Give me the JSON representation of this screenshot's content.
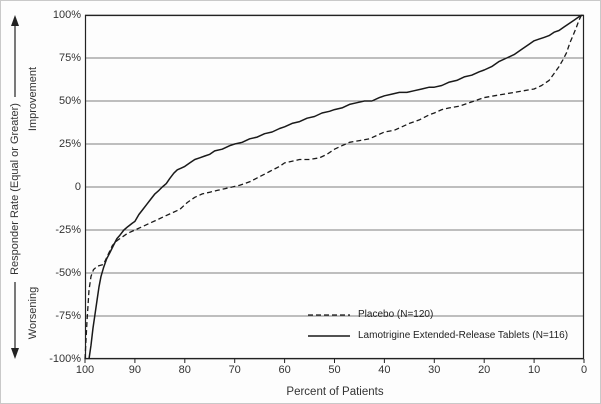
{
  "chart_data": {
    "type": "line",
    "title": "",
    "xlabel": "Percent of Patients",
    "ylabel": "Responder Rate (Equal or Greater)",
    "y_axis_upper_label": "Improvement",
    "y_axis_lower_label": "Worsening",
    "xlim": [
      100,
      0
    ],
    "ylim": [
      -100,
      100
    ],
    "x_axis_reversed": true,
    "x_ticks": [
      100,
      90,
      80,
      70,
      60,
      50,
      40,
      30,
      20,
      10,
      0
    ],
    "y_tick_values": [
      100,
      75,
      50,
      25,
      0,
      -25,
      -50,
      -75,
      -100
    ],
    "y_tick_labels": [
      "100%",
      "75%",
      "50%",
      "25%",
      "0",
      "-25%",
      "-50%",
      "-75%",
      "-100%"
    ],
    "grid": "horizontal",
    "line_color": "#1a1a1a",
    "legend_position": "inside-bottom-right",
    "series": [
      {
        "name": "Placebo (N=120)",
        "style": "dashed",
        "points": [
          [
            100,
            -100
          ],
          [
            99.6,
            -78
          ],
          [
            99.2,
            -60
          ],
          [
            98.8,
            -52
          ],
          [
            98.3,
            -48
          ],
          [
            97.5,
            -46
          ],
          [
            96.3,
            -45
          ],
          [
            95.5,
            -40
          ],
          [
            94.5,
            -34
          ],
          [
            93.5,
            -31
          ],
          [
            92.5,
            -29
          ],
          [
            91.5,
            -27
          ],
          [
            90,
            -25
          ],
          [
            88.5,
            -23
          ],
          [
            87,
            -21
          ],
          [
            85.5,
            -19
          ],
          [
            84,
            -17
          ],
          [
            82.5,
            -15
          ],
          [
            81,
            -13
          ],
          [
            79.5,
            -9
          ],
          [
            78,
            -6
          ],
          [
            76.5,
            -4
          ],
          [
            75,
            -3
          ],
          [
            73.5,
            -2
          ],
          [
            72,
            -1
          ],
          [
            70.5,
            0
          ],
          [
            69,
            1
          ],
          [
            67,
            3
          ],
          [
            65,
            6
          ],
          [
            63,
            9
          ],
          [
            61,
            12
          ],
          [
            60,
            14
          ],
          [
            58.5,
            15
          ],
          [
            57,
            16
          ],
          [
            55,
            16
          ],
          [
            53,
            17
          ],
          [
            51.5,
            19
          ],
          [
            50,
            22
          ],
          [
            48.5,
            24
          ],
          [
            47,
            26
          ],
          [
            45,
            27
          ],
          [
            43,
            28
          ],
          [
            41.5,
            30
          ],
          [
            40,
            32
          ],
          [
            38,
            33
          ],
          [
            36.5,
            35
          ],
          [
            35,
            37
          ],
          [
            33,
            39
          ],
          [
            31,
            42
          ],
          [
            30,
            43
          ],
          [
            28.5,
            45
          ],
          [
            27,
            46
          ],
          [
            25,
            47
          ],
          [
            23,
            49
          ],
          [
            21,
            51
          ],
          [
            20,
            52
          ],
          [
            18,
            53
          ],
          [
            16,
            54
          ],
          [
            14,
            55
          ],
          [
            12,
            56
          ],
          [
            10,
            57
          ],
          [
            8.5,
            59
          ],
          [
            7,
            62
          ],
          [
            6,
            66
          ],
          [
            5,
            70
          ],
          [
            4.2,
            74
          ],
          [
            3.5,
            78
          ],
          [
            2.8,
            84
          ],
          [
            2.2,
            88
          ],
          [
            1.5,
            93
          ],
          [
            1,
            97
          ],
          [
            0.5,
            100
          ]
        ]
      },
      {
        "name": "Lamotrigine Extended-Release Tablets (N=116)",
        "style": "solid",
        "points": [
          [
            99.2,
            -100
          ],
          [
            98.8,
            -92
          ],
          [
            98.4,
            -82
          ],
          [
            98,
            -74
          ],
          [
            97.6,
            -66
          ],
          [
            97.2,
            -58
          ],
          [
            96.8,
            -52
          ],
          [
            96.3,
            -47
          ],
          [
            95.7,
            -42
          ],
          [
            95,
            -38
          ],
          [
            94.3,
            -34
          ],
          [
            93.6,
            -30
          ],
          [
            93,
            -28
          ],
          [
            92.2,
            -25
          ],
          [
            91.4,
            -23
          ],
          [
            90.5,
            -21
          ],
          [
            90,
            -20
          ],
          [
            89.2,
            -16
          ],
          [
            88.4,
            -13
          ],
          [
            87.6,
            -10
          ],
          [
            86.8,
            -7
          ],
          [
            86,
            -4
          ],
          [
            85.2,
            -2
          ],
          [
            84.5,
            0
          ],
          [
            83.7,
            2
          ],
          [
            83,
            5
          ],
          [
            82.2,
            8
          ],
          [
            81.5,
            10
          ],
          [
            80.7,
            11
          ],
          [
            80,
            12
          ],
          [
            79,
            14
          ],
          [
            78,
            16
          ],
          [
            77,
            17
          ],
          [
            76,
            18
          ],
          [
            75,
            19
          ],
          [
            74,
            21
          ],
          [
            72.5,
            22
          ],
          [
            71,
            24
          ],
          [
            70,
            25
          ],
          [
            68.5,
            26
          ],
          [
            67,
            28
          ],
          [
            65.5,
            29
          ],
          [
            64,
            31
          ],
          [
            62.5,
            32
          ],
          [
            61,
            34
          ],
          [
            60,
            35
          ],
          [
            58.5,
            37
          ],
          [
            57,
            38
          ],
          [
            55.5,
            40
          ],
          [
            54,
            41
          ],
          [
            52.5,
            43
          ],
          [
            51,
            44
          ],
          [
            50,
            45
          ],
          [
            48.5,
            46
          ],
          [
            47,
            48
          ],
          [
            45.5,
            49
          ],
          [
            44,
            50
          ],
          [
            42.5,
            50
          ],
          [
            41,
            52
          ],
          [
            40,
            53
          ],
          [
            38.5,
            54
          ],
          [
            37,
            55
          ],
          [
            35.5,
            55
          ],
          [
            34,
            56
          ],
          [
            32.5,
            57
          ],
          [
            31,
            58
          ],
          [
            30,
            58
          ],
          [
            28.5,
            59
          ],
          [
            27,
            61
          ],
          [
            25.5,
            62
          ],
          [
            24,
            64
          ],
          [
            22.5,
            65
          ],
          [
            21,
            67
          ],
          [
            20,
            68
          ],
          [
            18.5,
            70
          ],
          [
            17,
            73
          ],
          [
            15.5,
            75
          ],
          [
            14,
            77
          ],
          [
            12.5,
            80
          ],
          [
            11,
            83
          ],
          [
            10,
            85
          ],
          [
            9,
            86
          ],
          [
            8,
            87
          ],
          [
            7,
            88
          ],
          [
            6,
            90
          ],
          [
            5,
            91
          ],
          [
            4,
            93
          ],
          [
            3,
            95
          ],
          [
            2,
            97
          ],
          [
            1,
            99
          ],
          [
            0.3,
            100
          ]
        ]
      }
    ]
  }
}
